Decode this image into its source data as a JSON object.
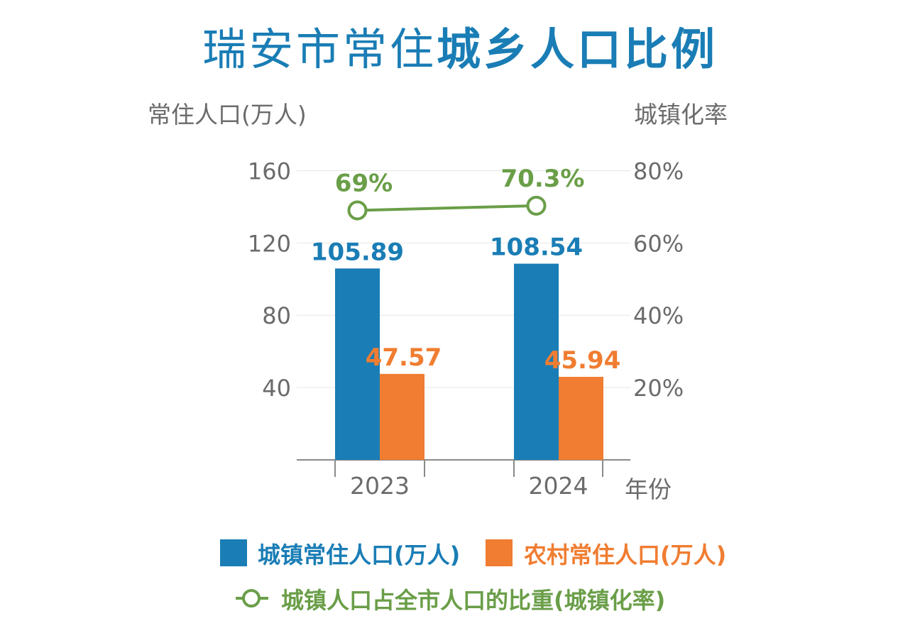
{
  "title": {
    "light": "瑞安市常住",
    "bold": "城乡人口比例"
  },
  "axes": {
    "y_left_title": "常住人口(万人)",
    "y_right_title": "城镇化率",
    "x_title": "年份"
  },
  "legend": {
    "urban": "城镇常住人口(万人)",
    "rural": "农村常住人口(万人)",
    "rate": "城镇人口占全市人口的比重(城镇化率)"
  },
  "colors": {
    "urban": "#1a7db5",
    "rural": "#f07d31",
    "rate": "#6a9e48",
    "axis_text": "#6b6b6b"
  },
  "chart_data": {
    "type": "bar",
    "categories": [
      "2023",
      "2024"
    ],
    "series": [
      {
        "name": "城镇常住人口(万人)",
        "values": [
          105.89,
          108.54
        ],
        "labels": [
          "105.89",
          "108.54"
        ],
        "axis": "left"
      },
      {
        "name": "农村常住人口(万人)",
        "values": [
          47.57,
          45.94
        ],
        "labels": [
          "47.57",
          "45.94"
        ],
        "axis": "left"
      },
      {
        "name": "城镇人口占全市人口的比重(城镇化率)",
        "type": "line",
        "values": [
          69,
          70.3
        ],
        "labels": [
          "69%",
          "70.3%"
        ],
        "axis": "right"
      }
    ],
    "y_left": {
      "ticks": [
        40,
        80,
        120,
        160
      ],
      "tick_labels": [
        "40",
        "80",
        "120",
        "160"
      ]
    },
    "y_right": {
      "ticks": [
        20,
        40,
        60,
        80
      ],
      "tick_labels": [
        "20%",
        "40%",
        "60%",
        "80%"
      ]
    },
    "grid": true,
    "legend_position": "bottom"
  }
}
